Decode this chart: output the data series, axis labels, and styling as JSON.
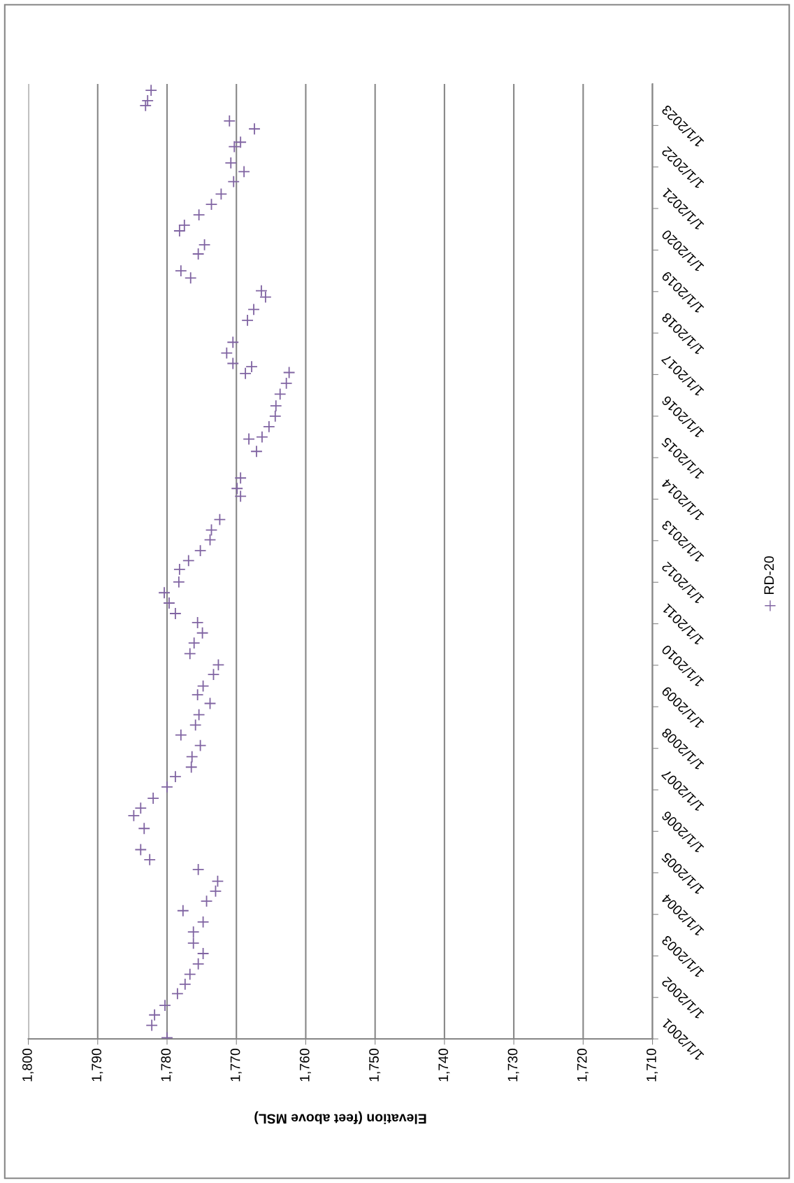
{
  "chart_data": {
    "type": "scatter",
    "orientation": "horizontal",
    "xlabel": "Elevation (feet above MSL)",
    "marker": "cross",
    "grid": "x",
    "legend": "right",
    "xlim": [
      1800,
      1710
    ],
    "xticks": [
      {
        "value": 1800,
        "label": "1,800"
      },
      {
        "value": 1790,
        "label": "1,790"
      },
      {
        "value": 1780,
        "label": "1,780"
      },
      {
        "value": 1770,
        "label": "1,770"
      },
      {
        "value": 1760,
        "label": "1,760"
      },
      {
        "value": 1750,
        "label": "1,750"
      },
      {
        "value": 1740,
        "label": "1,740"
      },
      {
        "value": 1730,
        "label": "1,730"
      },
      {
        "value": 1720,
        "label": "1,720"
      },
      {
        "value": 1710,
        "label": "1,710"
      }
    ],
    "ylim": [
      "2001-01-01",
      "2024-01-01"
    ],
    "yticks": [
      {
        "value": "2001-01-01",
        "label": "1/1/2001"
      },
      {
        "value": "2002-01-01",
        "label": "1/1/2002"
      },
      {
        "value": "2003-01-01",
        "label": "1/1/2003"
      },
      {
        "value": "2004-01-01",
        "label": "1/1/2004"
      },
      {
        "value": "2005-01-01",
        "label": "1/1/2005"
      },
      {
        "value": "2006-01-01",
        "label": "1/1/2006"
      },
      {
        "value": "2007-01-01",
        "label": "1/1/2007"
      },
      {
        "value": "2008-01-01",
        "label": "1/1/2008"
      },
      {
        "value": "2009-01-01",
        "label": "1/1/2009"
      },
      {
        "value": "2010-01-01",
        "label": "1/1/2010"
      },
      {
        "value": "2011-01-01",
        "label": "1/1/2011"
      },
      {
        "value": "2012-01-01",
        "label": "1/1/2012"
      },
      {
        "value": "2013-01-01",
        "label": "1/1/2013"
      },
      {
        "value": "2014-01-01",
        "label": "1/1/2014"
      },
      {
        "value": "2015-01-01",
        "label": "1/1/2015"
      },
      {
        "value": "2016-01-01",
        "label": "1/1/2016"
      },
      {
        "value": "2017-01-01",
        "label": "1/1/2017"
      },
      {
        "value": "2018-01-01",
        "label": "1/1/2018"
      },
      {
        "value": "2019-01-01",
        "label": "1/1/2019"
      },
      {
        "value": "2020-01-01",
        "label": "1/1/2020"
      },
      {
        "value": "2021-01-01",
        "label": "1/1/2021"
      },
      {
        "value": "2022-01-01",
        "label": "1/1/2022"
      },
      {
        "value": "2023-01-01",
        "label": "1/1/2023"
      }
    ],
    "x": [
      "2001-01-11",
      "2001-05-01",
      "2001-07-31",
      "2001-10-23",
      "2002-02-03",
      "2002-04-27",
      "2002-07-24",
      "2002-10-23",
      "2003-01-22",
      "2003-04-23",
      "2003-07-31",
      "2003-10-27",
      "2004-02-03",
      "2004-04-27",
      "2004-07-24",
      "2004-10-19",
      "2005-01-30",
      "2005-04-27",
      "2005-07-24",
      "2006-01-26",
      "2006-05-19",
      "2006-07-24",
      "2006-10-19",
      "2007-01-26",
      "2007-04-27",
      "2007-07-20",
      "2007-10-19",
      "2008-01-26",
      "2008-04-27",
      "2008-07-24",
      "2008-10-23",
      "2009-01-30",
      "2009-04-16",
      "2009-07-02",
      "2009-10-12",
      "2010-01-04",
      "2010-04-13",
      "2010-07-16",
      "2010-10-12",
      "2011-01-11",
      "2011-04-01",
      "2011-07-02",
      "2011-10-01",
      "2012-01-04",
      "2012-04-23",
      "2012-07-09",
      "2012-10-05",
      "2013-01-08",
      "2013-04-05",
      "2013-07-06",
      "2014-01-26",
      "2014-04-05",
      "2014-07-06",
      "2015-02-25",
      "2015-06-14",
      "2015-07-02",
      "2015-10-01",
      "2016-01-01",
      "2016-04-01",
      "2016-07-13",
      "2016-10-16",
      "2017-01-11",
      "2017-01-19",
      "2017-03-11",
      "2017-04-09",
      "2017-07-09",
      "2017-10-12",
      "2018-04-23",
      "2018-07-27",
      "2018-11-14",
      "2019-01-08",
      "2019-05-01",
      "2019-07-02",
      "2019-11-28",
      "2020-02-17",
      "2020-06-18",
      "2020-08-07",
      "2020-11-06",
      "2021-02-06",
      "2021-05-08",
      "2021-08-25",
      "2021-11-21",
      "2022-02-06",
      "2022-06-29",
      "2022-08-07",
      "2022-12-02",
      "2023-02-10",
      "2023-06-25",
      "2023-08-07",
      "2023-11-06"
    ],
    "series": [
      {
        "name": "RD-20",
        "color": "#8064a2",
        "values": [
          1780.0,
          1782.2,
          1781.8,
          1780.3,
          1778.5,
          1777.4,
          1776.7,
          1775.5,
          1774.8,
          1776.2,
          1776.2,
          1774.8,
          1777.7,
          1774.3,
          1773.0,
          1772.7,
          1775.5,
          1782.5,
          1783.8,
          1783.3,
          1784.8,
          1783.8,
          1782.0,
          1780.0,
          1778.8,
          1776.5,
          1776.4,
          1775.2,
          1778.0,
          1775.9,
          1775.4,
          1773.8,
          1775.6,
          1774.8,
          1773.3,
          1772.6,
          1776.7,
          1776.1,
          1774.9,
          1775.6,
          1778.8,
          1779.7,
          1780.4,
          1778.3,
          1778.2,
          1776.9,
          1775.2,
          1773.8,
          1773.6,
          1772.4,
          1769.4,
          1769.9,
          1769.4,
          1767.1,
          1768.2,
          1766.3,
          1765.3,
          1764.4,
          1764.3,
          1763.7,
          1762.8,
          1768.7,
          1762.4,
          1767.8,
          1770.5,
          1771.4,
          1770.5,
          1768.4,
          1767.5,
          1765.8,
          1766.4,
          1776.6,
          1778.0,
          1775.5,
          1774.6,
          1778.2,
          1777.5,
          1775.4,
          1773.6,
          1772.2,
          1770.4,
          1768.9,
          1770.8,
          1770.3,
          1769.4,
          1767.4,
          1771.0,
          1783.1,
          1782.8,
          1782.3
        ]
      }
    ]
  }
}
